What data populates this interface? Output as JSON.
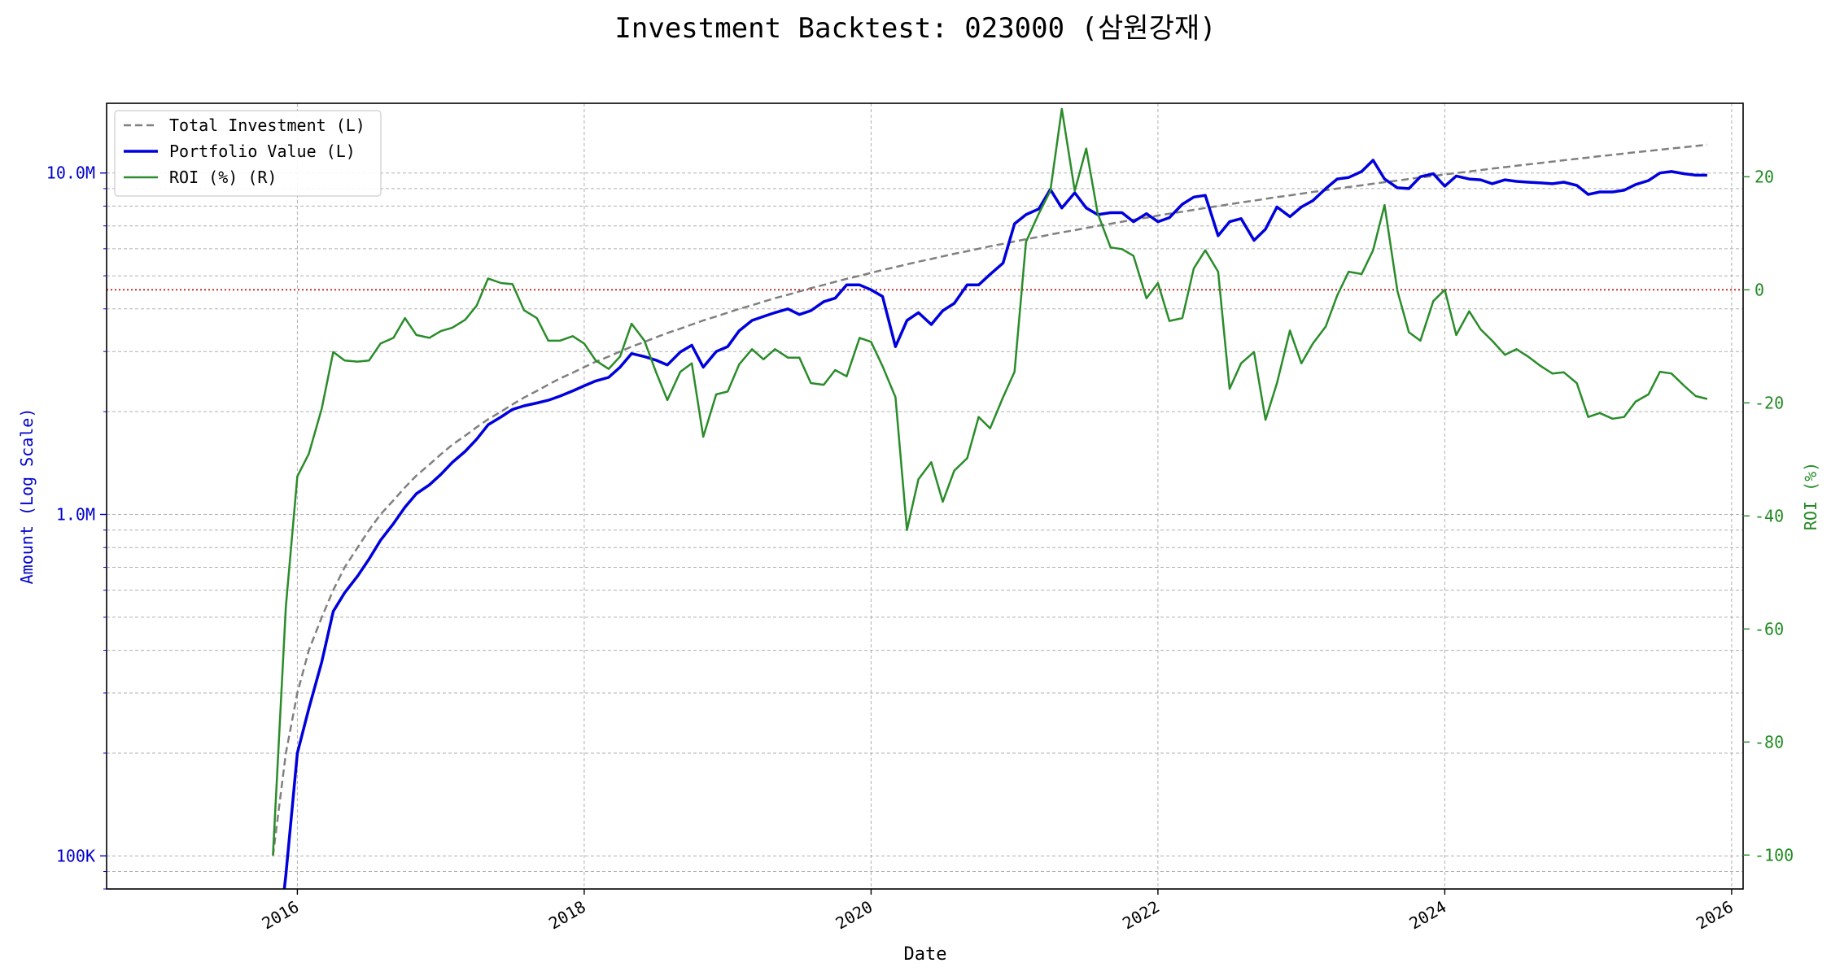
{
  "chart_data": {
    "type": "line",
    "title": "Investment Backtest: 023000 (삼원강재)",
    "xlabel": "Date",
    "ylabel_left": "Amount (Log Scale)",
    "ylabel_right": "ROI (%)",
    "left_scale": "log",
    "left_ylim": [
      80000,
      16000000
    ],
    "right_ylim": [
      -106,
      33
    ],
    "xlim": [
      2014.67,
      2026.08
    ],
    "x_ticks": [
      "2016",
      "2018",
      "2020",
      "2022",
      "2024",
      "2026"
    ],
    "left_ticks": [
      "100K",
      "1.0M",
      "10.0M"
    ],
    "right_ticks": [
      "-100",
      "-80",
      "-60",
      "-40",
      "-20",
      "0",
      "20"
    ],
    "grid": true,
    "legend_position": "upper left",
    "reference_line": {
      "axis": "right",
      "value": 0,
      "color": "#cc0000",
      "style": "dotted"
    },
    "colors": {
      "investment": "#808080",
      "portfolio": "#0000dd",
      "roi": "#2a8c2a"
    },
    "x": [
      2015.83,
      2015.92,
      2016.0,
      2016.08,
      2016.17,
      2016.25,
      2016.33,
      2016.42,
      2016.5,
      2016.58,
      2016.67,
      2016.75,
      2016.83,
      2016.92,
      2017.0,
      2017.08,
      2017.17,
      2017.25,
      2017.33,
      2017.42,
      2017.5,
      2017.58,
      2017.67,
      2017.75,
      2017.83,
      2017.92,
      2018.0,
      2018.08,
      2018.17,
      2018.25,
      2018.33,
      2018.42,
      2018.5,
      2018.58,
      2018.67,
      2018.75,
      2018.83,
      2018.92,
      2019.0,
      2019.08,
      2019.17,
      2019.25,
      2019.33,
      2019.42,
      2019.5,
      2019.58,
      2019.67,
      2019.75,
      2019.83,
      2019.92,
      2020.0,
      2020.08,
      2020.17,
      2020.25,
      2020.33,
      2020.42,
      2020.5,
      2020.58,
      2020.67,
      2020.75,
      2020.83,
      2020.92,
      2021.0,
      2021.08,
      2021.17,
      2021.25,
      2021.33,
      2021.42,
      2021.5,
      2021.58,
      2021.67,
      2021.75,
      2021.83,
      2021.92,
      2022.0,
      2022.08,
      2022.17,
      2022.25,
      2022.33,
      2022.42,
      2022.5,
      2022.58,
      2022.67,
      2022.75,
      2022.83,
      2022.92,
      2023.0,
      2023.08,
      2023.17,
      2023.25,
      2023.33,
      2023.42,
      2023.5,
      2023.58,
      2023.67,
      2023.75,
      2023.83,
      2023.92,
      2024.0,
      2024.08,
      2024.17,
      2024.25,
      2024.33,
      2024.42,
      2024.5,
      2024.58,
      2024.67,
      2024.75,
      2024.83,
      2024.92,
      2025.0,
      2025.08,
      2025.17,
      2025.25,
      2025.33,
      2025.42,
      2025.5,
      2025.58,
      2025.67,
      2025.75,
      2025.83
    ],
    "series": [
      {
        "name": "Total Investment (L)",
        "axis": "left",
        "style": "dashed",
        "values": [
          100000,
          200000,
          300000,
          400000,
          500000,
          600000,
          700000,
          800000,
          900000,
          1000000,
          1100000,
          1200000,
          1300000,
          1400000,
          1500000,
          1600000,
          1700000,
          1800000,
          1900000,
          2000000,
          2100000,
          2200000,
          2300000,
          2400000,
          2500000,
          2600000,
          2700000,
          2800000,
          2900000,
          3000000,
          3100000,
          3200000,
          3300000,
          3400000,
          3500000,
          3600000,
          3700000,
          3800000,
          3900000,
          4000000,
          4100000,
          4200000,
          4300000,
          4400000,
          4500000,
          4600000,
          4700000,
          4800000,
          4900000,
          5000000,
          5100000,
          5200000,
          5300000,
          5400000,
          5500000,
          5600000,
          5700000,
          5800000,
          5900000,
          6000000,
          6100000,
          6200000,
          6300000,
          6400000,
          6500000,
          6600000,
          6700000,
          6800000,
          6900000,
          7000000,
          7100000,
          7200000,
          7300000,
          7400000,
          7500000,
          7600000,
          7700000,
          7800000,
          7900000,
          8000000,
          8100000,
          8200000,
          8300000,
          8400000,
          8500000,
          8600000,
          8700000,
          8800000,
          8900000,
          9000000,
          9100000,
          9200000,
          9300000,
          9400000,
          9500000,
          9600000,
          9700000,
          9800000,
          9900000,
          10000000,
          10100000,
          10200000,
          10300000,
          10400000,
          10500000,
          10600000,
          10700000,
          10800000,
          10900000,
          11000000,
          11100000,
          11200000,
          11300000,
          11400000,
          11500000,
          11600000,
          11700000,
          11800000,
          11900000,
          12000000,
          12100000
        ]
      },
      {
        "name": "Portfolio Value (L)",
        "axis": "left",
        "style": "solid",
        "values": [
          10,
          88000,
          200000,
          270000,
          370000,
          520000,
          590000,
          660000,
          740000,
          840000,
          940000,
          1050000,
          1150000,
          1220000,
          1310000,
          1420000,
          1530000,
          1660000,
          1830000,
          1930000,
          2030000,
          2080000,
          2120000,
          2160000,
          2220000,
          2300000,
          2380000,
          2460000,
          2520000,
          2700000,
          2960000,
          2900000,
          2830000,
          2740000,
          2990000,
          3130000,
          2700000,
          3000000,
          3100000,
          3450000,
          3700000,
          3800000,
          3900000,
          4000000,
          3850000,
          3950000,
          4200000,
          4300000,
          4700000,
          4700000,
          4550000,
          4350000,
          3100000,
          3700000,
          3900000,
          3600000,
          3950000,
          4150000,
          4700000,
          4700000,
          5050000,
          5450000,
          7100000,
          7550000,
          7850000,
          8950000,
          7900000,
          8750000,
          7900000,
          7550000,
          7650000,
          7650000,
          7200000,
          7600000,
          7200000,
          7400000,
          8100000,
          8500000,
          8600000,
          6550000,
          7200000,
          7350000,
          6350000,
          6850000,
          7950000,
          7450000,
          7950000,
          8300000,
          9000000,
          9600000,
          9700000,
          10100000,
          10900000,
          9600000,
          9050000,
          9000000,
          9750000,
          9950000,
          9150000,
          9800000,
          9600000,
          9550000,
          9300000,
          9550000,
          9450000,
          9400000,
          9350000,
          9300000,
          9400000,
          9200000,
          8650000,
          8800000,
          8800000,
          8900000,
          9250000,
          9500000,
          10000000,
          10100000,
          9950000,
          9850000,
          9850000
        ]
      },
      {
        "name": "ROI (%) (R)",
        "axis": "right",
        "style": "solid",
        "values": [
          -100,
          -56,
          -33,
          -29,
          -21,
          -11,
          -12.5,
          -12.7,
          -12.5,
          -9.5,
          -8.5,
          -5,
          -8,
          -8.5,
          -7.3,
          -6.7,
          -5.3,
          -2.8,
          2,
          1.2,
          1,
          -3.6,
          -5,
          -9,
          -9,
          -8.2,
          -9.5,
          -12.5,
          -14,
          -11.8,
          -6,
          -9,
          -14.5,
          -19.5,
          -14.5,
          -13,
          -26,
          -18.5,
          -18,
          -13.2,
          -10.5,
          -12.3,
          -10.5,
          -12,
          -12,
          -16.5,
          -16.8,
          -14.2,
          -15.3,
          -8.5,
          -9.2,
          -13.5,
          -19,
          -42.5,
          -33.5,
          -30.5,
          -37.5,
          -32,
          -29.8,
          -22.5,
          -24.5,
          -19,
          -14.5,
          8.5,
          13.5,
          17.5,
          32,
          17.5,
          25,
          13.5,
          7.5,
          7.2,
          6,
          -1.5,
          1.2,
          -5.5,
          -5,
          3.8,
          7,
          3.2,
          -17.5,
          -13,
          -11,
          -23,
          -16.5,
          -7.2,
          -13,
          -9.5,
          -6.5,
          -1,
          3.2,
          2.8,
          7,
          15,
          -0.2,
          -7.5,
          -9,
          -2,
          0,
          -8,
          -3.8,
          -7,
          -9,
          -11.5,
          -10.5,
          -11.8,
          -13.5,
          -14.8,
          -14.6,
          -16.5,
          -22.5,
          -21.8,
          -22.8,
          -22.5,
          -19.8,
          -18.5,
          -14.5,
          -14.8,
          -17,
          -18.8,
          -19.3
        ]
      }
    ]
  }
}
